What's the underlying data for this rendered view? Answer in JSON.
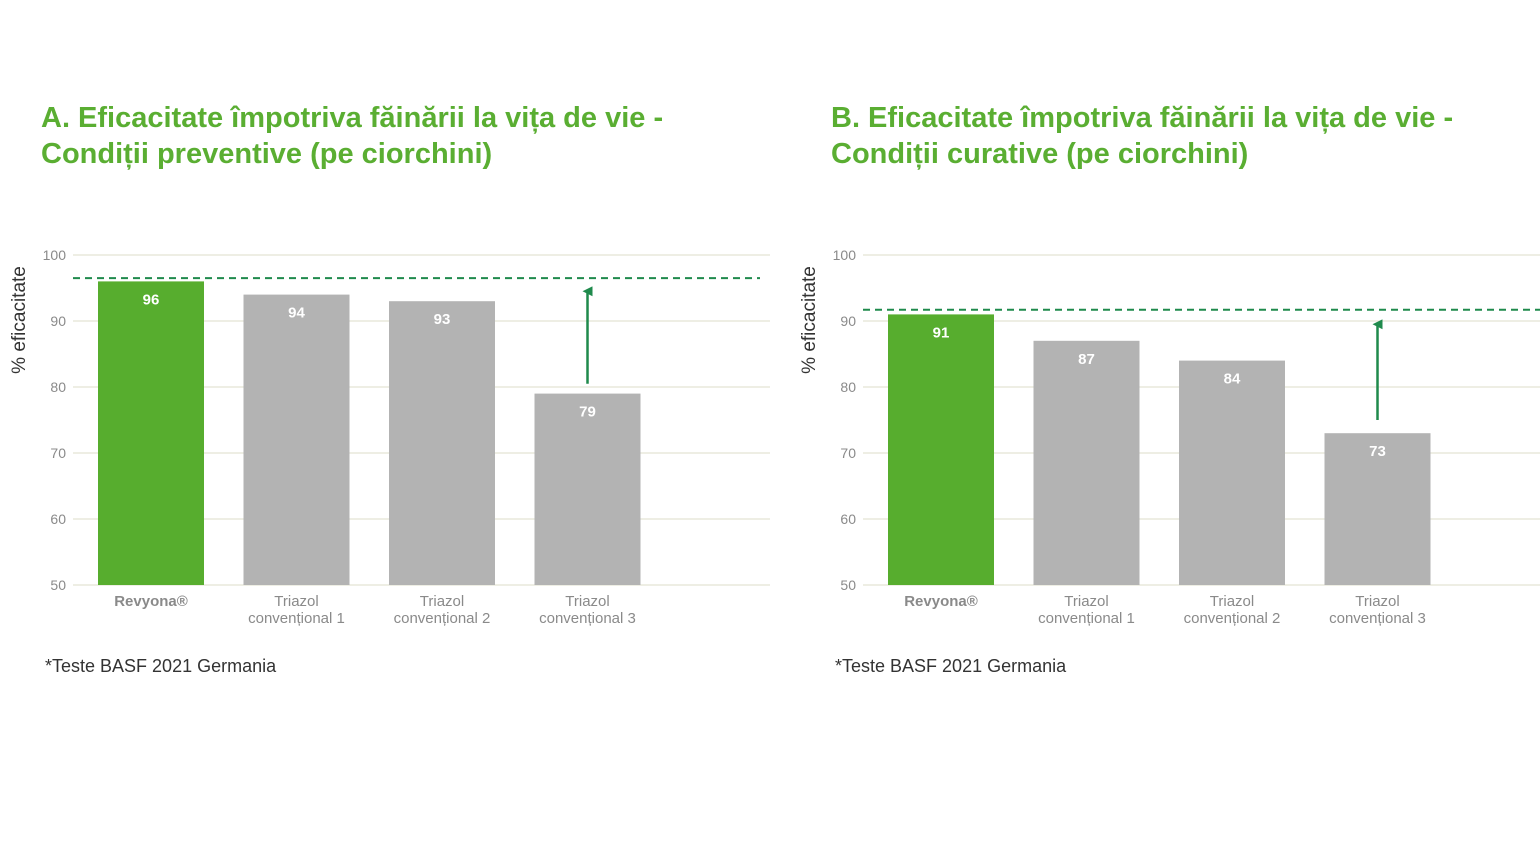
{
  "chart_data": [
    {
      "type": "bar",
      "title": "A. Eficacitate împotriva făinării la vița de vie - Condiții preventive (pe ciorchini)",
      "title_lines": [
        "A. Eficacitate împotriva făinării la vița de vie -",
        "Condiții preventive (pe ciorchini)"
      ],
      "ylabel": "% eficacitate",
      "ylim": [
        50,
        100
      ],
      "yticks": [
        "50",
        "60",
        "70",
        "80",
        "90",
        "100"
      ],
      "categories": [
        [
          "Revyona®"
        ],
        [
          "Triazol",
          "convențional 1"
        ],
        [
          "Triazol",
          "convențional 2"
        ],
        [
          "Triazol",
          "convențional 3"
        ]
      ],
      "values": [
        96,
        94,
        93,
        79
      ],
      "value_labels": [
        "96",
        "94",
        "93",
        "79"
      ],
      "highlight_index": 0,
      "reference_line": 96.5,
      "arrow": {
        "bar_index": 3,
        "from": 80.5,
        "to": 94.5
      },
      "footnote": "*Teste BASF 2021 Germania",
      "colors": {
        "highlight": "#57ad2e",
        "bar": "#b3b3b3",
        "grid": "#e8e8dc",
        "dash": "#1f8a4c",
        "arrow": "#1f8a4c"
      }
    },
    {
      "type": "bar",
      "title": "B. Eficacitate împotriva făinării la vița de vie - Condiții curative (pe ciorchini)",
      "title_lines": [
        "B. Eficacitate împotriva făinării la vița de vie -",
        "Condiții curative (pe ciorchini)"
      ],
      "ylabel": "% eficacitate",
      "ylim": [
        50,
        100
      ],
      "yticks": [
        "50",
        "60",
        "70",
        "80",
        "90",
        "100"
      ],
      "categories": [
        [
          "Revyona®"
        ],
        [
          "Triazol",
          "convențional 1"
        ],
        [
          "Triazol",
          "convențional 2"
        ],
        [
          "Triazol",
          "convențional 3"
        ]
      ],
      "values": [
        91,
        87,
        84,
        73
      ],
      "value_labels": [
        "91",
        "87",
        "84",
        "73"
      ],
      "highlight_index": 0,
      "reference_line": 91.7,
      "arrow": {
        "bar_index": 3,
        "from": 75.0,
        "to": 89.5
      },
      "footnote": "*Teste BASF 2021 Germania",
      "colors": {
        "highlight": "#57ad2e",
        "bar": "#b3b3b3",
        "grid": "#e8e8dc",
        "dash": "#1f8a4c",
        "arrow": "#1f8a4c"
      }
    }
  ]
}
